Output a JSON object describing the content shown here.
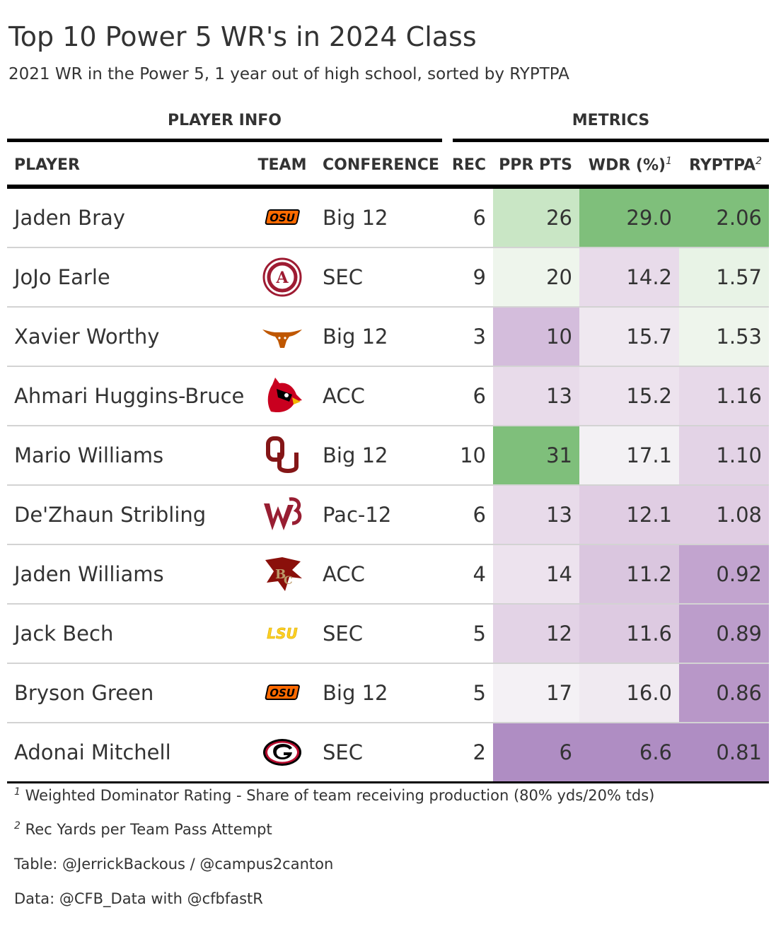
{
  "header": {
    "title": "Top 10 Power 5 WR's in 2024 Class",
    "subtitle": "2021 WR in the Power 5, 1 year out of high school, sorted by RYPTPA",
    "spanner_left": "PLAYER INFO",
    "spanner_right": "METRICS"
  },
  "columns": {
    "player": "PLAYER",
    "team": "TEAM",
    "conference": "CONFERENCE",
    "rec": "REC",
    "ppr": "PPR PTS",
    "wdr": "WDR (%)",
    "wdr_note": "1",
    "ryptpa": "RYPTPA",
    "ryptpa_note": "2"
  },
  "chart_data": {
    "type": "table",
    "colors": {
      "high": "#7fbf7b",
      "mid": "#f7f7f7",
      "low": "#af8dc3"
    },
    "rows": [
      {
        "player": "Jaden Bray",
        "team_logo": "oklahoma-state-logo",
        "conference": "Big 12",
        "rec": "6",
        "ppr": "26",
        "wdr": "29.0",
        "ryptpa": "2.06",
        "ppr_color": "#c9e6c5",
        "wdr_color": "#7fbf7b",
        "ryptpa_color": "#7fbf7b"
      },
      {
        "player": "JoJo Earle",
        "team_logo": "alabama-logo",
        "conference": "SEC",
        "rec": "9",
        "ppr": "20",
        "wdr": "14.2",
        "ryptpa": "1.57",
        "ppr_color": "#eef5ec",
        "wdr_color": "#e8dbea",
        "ryptpa_color": "#e8f3e6"
      },
      {
        "player": "Xavier Worthy",
        "team_logo": "texas-logo",
        "conference": "Big 12",
        "rec": "3",
        "ppr": "10",
        "wdr": "15.7",
        "ryptpa": "1.53",
        "ppr_color": "#d4bddc",
        "wdr_color": "#efe8f0",
        "ryptpa_color": "#eef5ec"
      },
      {
        "player": "Ahmari Huggins-Bruce",
        "team_logo": "louisville-logo",
        "conference": "ACC",
        "rec": "6",
        "ppr": "13",
        "wdr": "15.2",
        "ryptpa": "1.16",
        "ppr_color": "#e8dbea",
        "wdr_color": "#ede3ee",
        "ryptpa_color": "#e7d9e9"
      },
      {
        "player": "Mario Williams",
        "team_logo": "oklahoma-logo",
        "conference": "Big 12",
        "rec": "10",
        "ppr": "31",
        "wdr": "17.1",
        "ryptpa": "1.10",
        "ppr_color": "#7fbf7b",
        "wdr_color": "#f3f1f4",
        "ryptpa_color": "#e3d3e6"
      },
      {
        "player": "De'Zhaun Stribling",
        "team_logo": "washington-state-logo",
        "conference": "Pac-12",
        "rec": "6",
        "ppr": "13",
        "wdr": "12.1",
        "ryptpa": "1.08",
        "ppr_color": "#e8dbea",
        "wdr_color": "#e0cde3",
        "ryptpa_color": "#e0cde3"
      },
      {
        "player": "Jaden Williams",
        "team_logo": "boston-college-logo",
        "conference": "ACC",
        "rec": "4",
        "ppr": "14",
        "wdr": "11.2",
        "ryptpa": "0.92",
        "ppr_color": "#ede3ee",
        "wdr_color": "#dac6df",
        "ryptpa_color": "#c2a4cf"
      },
      {
        "player": "Jack Bech",
        "team_logo": "lsu-logo",
        "conference": "SEC",
        "rec": "5",
        "ppr": "12",
        "wdr": "11.6",
        "ryptpa": "0.89",
        "ppr_color": "#e3d3e6",
        "wdr_color": "#ddcae1",
        "ryptpa_color": "#bc9dcb"
      },
      {
        "player": "Bryson Green",
        "team_logo": "oklahoma-state-logo",
        "conference": "Big 12",
        "rec": "5",
        "ppr": "17",
        "wdr": "16.0",
        "ryptpa": "0.86",
        "ppr_color": "#f4f1f5",
        "wdr_color": "#f0eaf1",
        "ryptpa_color": "#b897c8"
      },
      {
        "player": "Adonai Mitchell",
        "team_logo": "georgia-logo",
        "conference": "SEC",
        "rec": "2",
        "ppr": "6",
        "wdr": "6.6",
        "ryptpa": "0.81",
        "ppr_color": "#af8dc3",
        "wdr_color": "#af8dc3",
        "ryptpa_color": "#af8dc3"
      }
    ]
  },
  "footnotes": {
    "note1_mark": "1",
    "note1": "Weighted Dominator Rating - Share of team receiving production (80% yds/20% tds)",
    "note2_mark": "2",
    "note2": "Rec Yards per Team Pass Attempt",
    "credit": "Table: @JerrickBackous / @campus2canton",
    "source": "Data: @CFB_Data with @cfbfastR"
  }
}
